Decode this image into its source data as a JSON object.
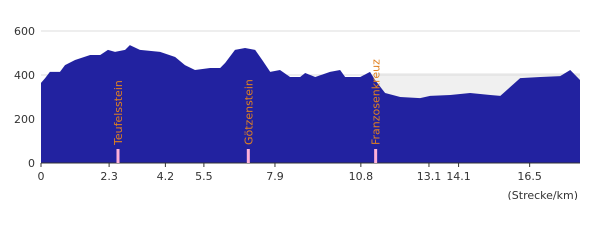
{
  "chart_data": {
    "type": "area",
    "x_label": "(Strecke/km)",
    "x": [
      0,
      0.14,
      0.3,
      0.64,
      0.81,
      1.15,
      1.66,
      2.0,
      2.26,
      2.5,
      2.84,
      3.0,
      3.34,
      4.02,
      4.53,
      4.86,
      5.2,
      5.71,
      6.05,
      6.22,
      6.55,
      6.89,
      7.23,
      7.47,
      7.74,
      8.07,
      8.41,
      8.75,
      8.92,
      9.26,
      9.76,
      10.1,
      10.27,
      10.78,
      11.11,
      11.28,
      11.62,
      12.13,
      12.8,
      13.14,
      13.82,
      14.49,
      15.17,
      15.51,
      16.18,
      16.86,
      17.53,
      17.87,
      18.2
    ],
    "values": [
      364,
      386,
      414,
      414,
      445,
      468,
      491,
      491,
      514,
      505,
      514,
      536,
      514,
      505,
      482,
      445,
      423,
      432,
      432,
      455,
      514,
      523,
      514,
      468,
      414,
      423,
      391,
      391,
      409,
      391,
      414,
      423,
      391,
      391,
      414,
      377,
      318,
      300,
      295,
      305,
      309,
      318,
      309,
      305,
      386,
      391,
      395,
      423,
      377
    ],
    "color": "#2222a0",
    "xlim": [
      0,
      18.2
    ],
    "xticks": [
      0,
      2.3,
      4.2,
      5.5,
      7.9,
      10.8,
      13.1,
      14.1,
      16.5
    ],
    "ylim": [
      0,
      600
    ],
    "yticks": [
      0,
      200,
      400,
      600
    ],
    "grid": true,
    "markers": [
      {
        "label": "Teufelsstein",
        "x": 2.6
      },
      {
        "label": "Götzenstein",
        "x": 7.0
      },
      {
        "label": "Franzosenkreuz",
        "x": 11.3
      }
    ]
  }
}
